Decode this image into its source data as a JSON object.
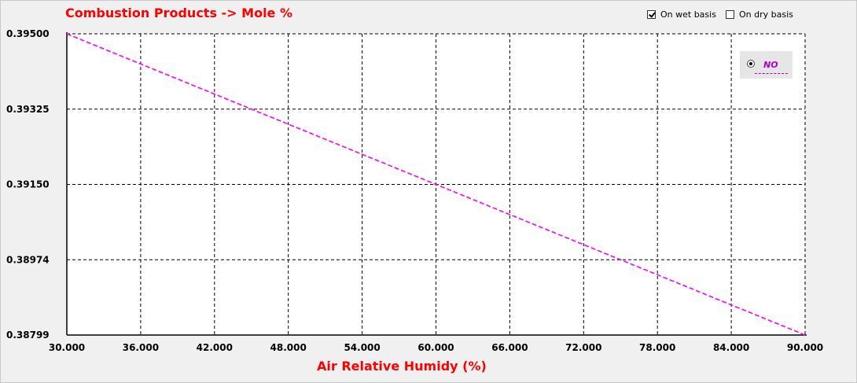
{
  "chart_data": {
    "type": "line",
    "title": "Combustion Products -> Mole %",
    "xlabel": "Air Relative Humidy (%)",
    "ylabel": "",
    "x_ticks": [
      "30.000",
      "36.000",
      "42.000",
      "48.000",
      "54.000",
      "60.000",
      "66.000",
      "72.000",
      "78.000",
      "84.000",
      "90.000"
    ],
    "y_ticks": [
      "0.39500",
      "0.39325",
      "0.39150",
      "0.38974",
      "0.38799"
    ],
    "xlim": [
      30,
      90
    ],
    "ylim": [
      0.38799,
      0.395
    ],
    "grid": true,
    "legend_placement": "top-right",
    "series": [
      {
        "name": "NO",
        "color": "#ff00ff",
        "style": "dashed",
        "x": [
          30,
          90
        ],
        "y": [
          0.395,
          0.38799
        ]
      }
    ]
  },
  "controls": {
    "wet_label": "On wet basis",
    "wet_checked": true,
    "dry_label": "On dry basis",
    "dry_checked": false
  },
  "colors": {
    "title": "#ff0000",
    "plot_bg": "#ffffff",
    "grid": "#000000"
  }
}
